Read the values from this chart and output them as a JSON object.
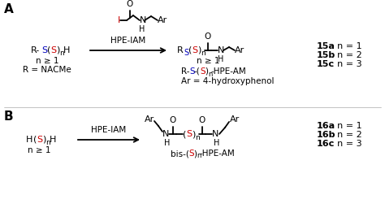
{
  "bg_color": "#ffffff",
  "black": "#000000",
  "red": "#cc0000",
  "blue": "#0000bb",
  "figsize": [
    4.74,
    2.72
  ],
  "dpi": 100,
  "section_A": {
    "series": [
      "15a: n = 1",
      "15b: n = 2",
      "15c: n = 3"
    ]
  },
  "section_B": {
    "series": [
      "16a: n = 1",
      "16b: n = 2",
      "16c: n = 3"
    ]
  }
}
